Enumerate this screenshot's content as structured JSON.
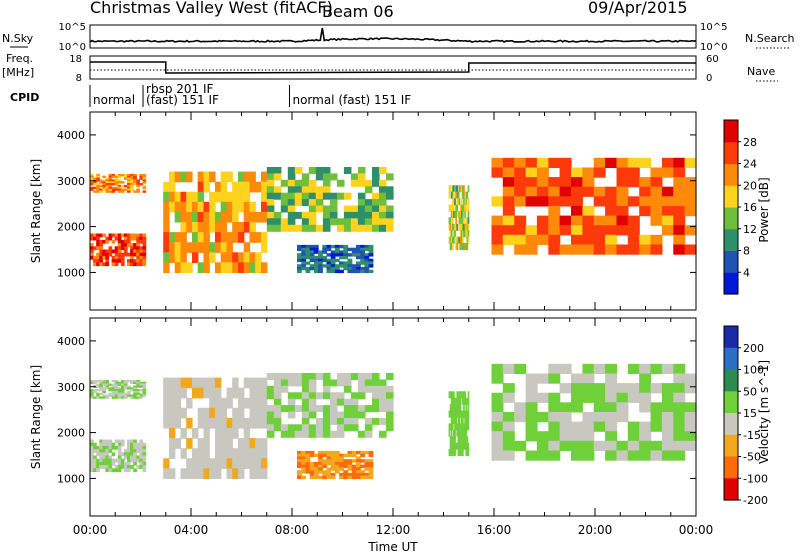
{
  "header": {
    "title": "Christmas Valley West (fitACF)",
    "beam": "Beam 06",
    "date": "09/Apr/2015"
  },
  "status_panels": {
    "nsky_label": "N.Sky",
    "freq_label_line1": "Freq.",
    "freq_label_line2": "[MHz]",
    "cpid_label": "CPID",
    "nsearch_label": "N.Search",
    "nave_label": "Nave",
    "noise_ticks_left": [
      "10^5",
      "10^0"
    ],
    "noise_ticks_right": [
      "10^5",
      "10^0"
    ],
    "freq_ticks": [
      "18",
      "8"
    ],
    "nave_ticks": [
      "60",
      "0"
    ],
    "cpid_segments": [
      {
        "label": "normal",
        "start_hour": 0.0,
        "end_hour": 2.1
      },
      {
        "label_line1": "rbsp 201 IF",
        "label_line2": "(fast) 151 IF",
        "start_hour": 2.1,
        "end_hour": 7.9
      },
      {
        "label": "normal (fast) 151 IF",
        "start_hour": 7.9,
        "end_hour": 24.0
      }
    ]
  },
  "chart_data": [
    {
      "type": "heatmap",
      "name": "power",
      "ylabel": "Slant Range [km]",
      "xlabel": "",
      "xlim": [
        0,
        24
      ],
      "ylim": [
        180,
        4500
      ],
      "y_ticks": [
        "1000",
        "2000",
        "3000",
        "4000"
      ],
      "colorbar_label": "Power [dB]",
      "colorbar_ticks": [
        "4",
        "8",
        "12",
        "16",
        "20",
        "24",
        "28"
      ],
      "colorbar_colors": [
        "#0018d8",
        "#1f54b4",
        "#2f8f6a",
        "#6dbf3c",
        "#ffd21e",
        "#ff8a0a",
        "#ff3a0a",
        "#e00000"
      ],
      "colorbar_range": [
        0,
        32
      ],
      "echo_regions": [
        {
          "x": [
            0.0,
            2.2
          ],
          "y": [
            1150,
            1850
          ],
          "value": 26
        },
        {
          "x": [
            0.0,
            2.2
          ],
          "y": [
            2750,
            3150
          ],
          "value": 22
        },
        {
          "x": [
            2.9,
            7.0
          ],
          "y": [
            1000,
            3200
          ],
          "value": 20
        },
        {
          "x": [
            7.0,
            12.0
          ],
          "y": [
            1900,
            3300
          ],
          "value": 14
        },
        {
          "x": [
            8.2,
            11.2
          ],
          "y": [
            1000,
            1600
          ],
          "value": 7
        },
        {
          "x": [
            14.2,
            15.0
          ],
          "y": [
            1500,
            2900
          ],
          "value": 16
        },
        {
          "x": [
            15.9,
            24.0
          ],
          "y": [
            1400,
            3500
          ],
          "value": 24
        }
      ]
    },
    {
      "type": "heatmap",
      "name": "velocity",
      "ylabel": "Slant Range [km]",
      "xlabel": "Time UT",
      "xlim": [
        0,
        24
      ],
      "ylim": [
        180,
        4500
      ],
      "x_ticks": [
        "00:00",
        "04:00",
        "08:00",
        "12:00",
        "16:00",
        "20:00",
        "00:00"
      ],
      "y_ticks": [
        "1000",
        "2000",
        "3000",
        "4000"
      ],
      "colorbar_label": "Velocity [m s^-1]",
      "colorbar_ticks": [
        "200",
        "100",
        "50",
        "15",
        "-15",
        "-50",
        "-100",
        "-200"
      ],
      "colorbar_colors": [
        "#1a2aa6",
        "#2a6fc4",
        "#2e8a4e",
        "#6fd03a",
        "#c8c8c0",
        "#f2a81c",
        "#ff6a0a",
        "#e00000"
      ],
      "colorbar_range": [
        -250,
        250
      ],
      "echo_regions": [
        {
          "x": [
            0.0,
            2.2
          ],
          "y": [
            1150,
            1850
          ],
          "value": 0
        },
        {
          "x": [
            0.0,
            2.2
          ],
          "y": [
            2750,
            3150
          ],
          "value": 0
        },
        {
          "x": [
            2.9,
            7.0
          ],
          "y": [
            1000,
            3200
          ],
          "value": -40
        },
        {
          "x": [
            7.0,
            12.0
          ],
          "y": [
            1900,
            3300
          ],
          "value": 0
        },
        {
          "x": [
            8.2,
            11.2
          ],
          "y": [
            1000,
            1600
          ],
          "value": -120
        },
        {
          "x": [
            14.2,
            15.0
          ],
          "y": [
            1500,
            2900
          ],
          "value": 30
        },
        {
          "x": [
            15.9,
            24.0
          ],
          "y": [
            1400,
            3500
          ],
          "value": 0
        }
      ]
    }
  ]
}
